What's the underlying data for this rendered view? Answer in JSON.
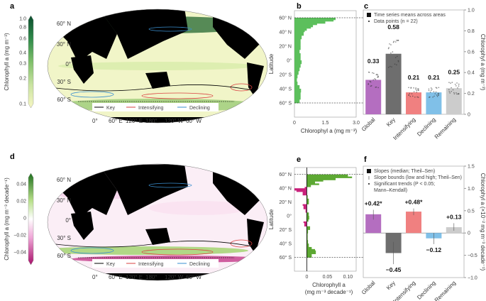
{
  "panels": {
    "a": "a",
    "b": "b",
    "c": "c",
    "d": "d",
    "e": "e",
    "f": "f"
  },
  "map": {
    "lat_labels": [
      "60° N",
      "30° N",
      "0°",
      "30° S",
      "60° S"
    ],
    "lon_labels": [
      "0°",
      "60° E",
      "120° E",
      "180°",
      "120° W",
      "60° W"
    ],
    "legend": [
      "Key",
      "Intensifying",
      "Declining"
    ],
    "legend_colors": [
      "#000000",
      "#d94040",
      "#3a8fd0"
    ]
  },
  "colorbar_a": {
    "label": "Chlorophyll a (mg m⁻³)",
    "ticks": [
      "1.0",
      "0.8",
      "0.6",
      "0.4",
      "0.3",
      "0.2",
      "0.1"
    ],
    "colors": [
      "#f7f7c4",
      "#c9e3a0",
      "#7fbf6a",
      "#2f8a4a",
      "#0b4d2e"
    ]
  },
  "colorbar_d": {
    "label": "Chlorophyll a (mg m⁻³ decade⁻¹)",
    "ticks": [
      "0.04",
      "0.02",
      "0",
      "−0.02",
      "−0.04"
    ],
    "colors": [
      "#1f6f1f",
      "#b8e08a",
      "#ffffff",
      "#f0a8d8",
      "#a8106a"
    ]
  },
  "chart_data": [
    {
      "panel": "b",
      "type": "area",
      "orientation": "horizontal",
      "ylabel": "Latitude",
      "xlabel": "Chlorophyl a (mg m⁻³)",
      "xticks": [
        "0",
        "1.5",
        "3.0"
      ],
      "xlim": [
        0,
        3.0
      ],
      "yticks": [
        "60° N",
        "40° N",
        "20° N",
        "0°",
        "20° S",
        "40° S",
        "60° S"
      ],
      "ylim": [
        -80,
        70
      ],
      "reference_lines": [
        60,
        -60
      ],
      "color": "#5cbf5c",
      "lat": [
        60,
        57,
        55,
        52,
        50,
        47,
        45,
        42,
        40,
        35,
        30,
        25,
        20,
        15,
        10,
        5,
        0,
        -5,
        -10,
        -15,
        -20,
        -25,
        -30,
        -35,
        -40,
        -45,
        -50,
        -55,
        -60
      ],
      "values": [
        2.0,
        1.9,
        1.5,
        1.1,
        0.9,
        0.8,
        0.6,
        0.5,
        0.45,
        0.35,
        0.3,
        0.3,
        0.3,
        0.25,
        0.3,
        0.3,
        0.35,
        0.3,
        0.25,
        0.2,
        0.15,
        0.12,
        0.15,
        0.25,
        0.32,
        0.3,
        0.3,
        0.25,
        0.2
      ]
    },
    {
      "panel": "c",
      "type": "bar",
      "categories": [
        "Global",
        "Key",
        "Intensifying",
        "Declining",
        "Remaining"
      ],
      "values": [
        0.33,
        0.58,
        0.21,
        0.21,
        0.25
      ],
      "value_labels": [
        "0.33",
        "0.58",
        "0.21",
        "0.21",
        "0.25"
      ],
      "colors": [
        "#b46ec0",
        "#6e6e6e",
        "#f08080",
        "#80c0e8",
        "#cccccc"
      ],
      "ylabel": "Chlorophyl a (mg m⁻³)",
      "ylim": [
        0,
        1.0
      ],
      "yticks": [
        "0",
        "0.2",
        "0.4",
        "0.6",
        "0.8",
        "1.0"
      ],
      "legend": [
        "Time series means across areas",
        "Data points (n = 22)"
      ],
      "legend_placement": "top-left"
    },
    {
      "panel": "e",
      "type": "area",
      "orientation": "horizontal",
      "ylabel": "Latitude",
      "xlabel": "Chlorophyll a",
      "xlabel2": "(mg m⁻³ decade⁻¹)",
      "xticks": [
        "0",
        "0.05",
        "0.10"
      ],
      "xlim": [
        -0.03,
        0.12
      ],
      "yticks": [
        "60° N",
        "40° N",
        "20° N",
        "0°",
        "20° S",
        "40° S",
        "60° S"
      ],
      "ylim": [
        -80,
        70
      ],
      "reference_lines": [
        60,
        -60
      ],
      "pos_color": "#5ca832",
      "neg_color": "#c8207a",
      "lat": [
        60,
        57,
        55,
        52,
        50,
        47,
        45,
        42,
        40,
        37,
        35,
        32,
        30,
        25,
        20,
        17,
        15,
        10,
        5,
        0,
        -5,
        -8,
        -10,
        -15,
        -20,
        -25,
        -30,
        -35,
        -40,
        -45,
        -48,
        -50,
        -55,
        -60
      ],
      "values": [
        0.1,
        0.11,
        0.07,
        0.04,
        0.02,
        0.03,
        0.01,
        -0.005,
        -0.03,
        -0.025,
        -0.01,
        -0.01,
        0.002,
        0.005,
        0.005,
        -0.01,
        -0.008,
        -0.003,
        0.005,
        0.006,
        0.004,
        -0.008,
        -0.006,
        0.008,
        0.003,
        0.002,
        0.002,
        0.003,
        0.005,
        0.012,
        0.02,
        0.022,
        0.012,
        0.005
      ]
    },
    {
      "panel": "f",
      "type": "bar",
      "categories": [
        "Global",
        "Key",
        "Intensifying",
        "Declining",
        "Remaining"
      ],
      "values": [
        0.42,
        -0.45,
        0.48,
        -0.12,
        0.13
      ],
      "bounds": [
        [
          0.3,
          0.52
        ],
        [
          -0.7,
          -0.2
        ],
        [
          0.4,
          0.55
        ],
        [
          -0.25,
          0.0
        ],
        [
          0.05,
          0.22
        ]
      ],
      "value_labels": [
        "+0.42*",
        "−0.45",
        "+0.48*",
        "−0.12",
        "+0.13"
      ],
      "colors": [
        "#b46ec0",
        "#6e6e6e",
        "#f08080",
        "#80c0e8",
        "#cccccc"
      ],
      "ylabel": "Chlorophyl a (×10⁻² mg m⁻³ decade⁻¹)",
      "ylim": [
        -1.0,
        1.5
      ],
      "yticks": [
        "−1.0",
        "−0.5",
        "0",
        "0.5",
        "1.0",
        "1.5"
      ],
      "legend": [
        "Slopes (median; Theil–Sen)",
        "Slope bounds (low and high; Theil–Sen)",
        "Significant trends (P < 0.05;",
        "Mann–Kendall)"
      ],
      "legend_placement": "top-left"
    }
  ]
}
